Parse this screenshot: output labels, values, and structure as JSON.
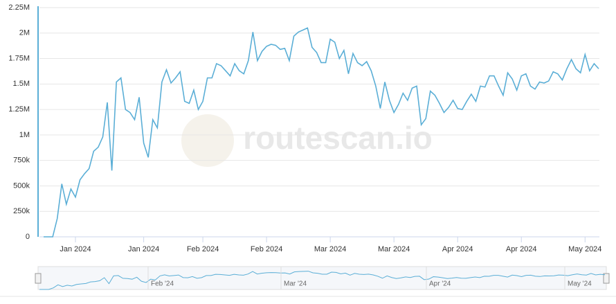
{
  "chart_data": {
    "type": "line",
    "watermark": "routescan.io",
    "categories": [
      null,
      null,
      null,
      null,
      null,
      null,
      null,
      "Jan 2024",
      null,
      null,
      null,
      null,
      null,
      null,
      null,
      null,
      null,
      null,
      null,
      null,
      null,
      null,
      "Jan 2024",
      null,
      null,
      null,
      null,
      null,
      null,
      null,
      null,
      null,
      null,
      null,
      null,
      "Feb 2024",
      null,
      null,
      null,
      null,
      null,
      null,
      null,
      null,
      null,
      null,
      null,
      null,
      null,
      "Feb 2024",
      null,
      null,
      null,
      null,
      null,
      null,
      null,
      null,
      null,
      null,
      null,
      null,
      null,
      "Mar 2024",
      null,
      null,
      null,
      null,
      null,
      null,
      null,
      null,
      null,
      null,
      null,
      null,
      null,
      "Mar 2024",
      null,
      null,
      null,
      null,
      null,
      null,
      null,
      null,
      null,
      null,
      null,
      null,
      null,
      "Apr 2024",
      null,
      null,
      null,
      null,
      null,
      null,
      null,
      null,
      null,
      null,
      null,
      null,
      null,
      "Apr 2024",
      null,
      null,
      null,
      null,
      null,
      null,
      null,
      null,
      null,
      null,
      null,
      null,
      null,
      "May 2024",
      null,
      null,
      null
    ],
    "series": [
      {
        "color": "#5aaed6",
        "values": [
          0,
          0,
          0,
          180000,
          520000,
          320000,
          470000,
          390000,
          560000,
          620000,
          670000,
          840000,
          880000,
          980000,
          1320000,
          650000,
          1520000,
          1560000,
          1250000,
          1220000,
          1150000,
          1370000,
          920000,
          780000,
          1150000,
          1070000,
          1520000,
          1640000,
          1510000,
          1560000,
          1620000,
          1330000,
          1310000,
          1440000,
          1250000,
          1330000,
          1560000,
          1560000,
          1700000,
          1680000,
          1630000,
          1580000,
          1700000,
          1630000,
          1600000,
          1730000,
          2010000,
          1730000,
          1820000,
          1870000,
          1890000,
          1880000,
          1840000,
          1850000,
          1730000,
          1970000,
          2010000,
          2030000,
          2050000,
          1860000,
          1810000,
          1710000,
          1710000,
          1940000,
          1910000,
          1750000,
          1830000,
          1600000,
          1800000,
          1710000,
          1680000,
          1720000,
          1630000,
          1480000,
          1260000,
          1520000,
          1340000,
          1220000,
          1300000,
          1410000,
          1340000,
          1460000,
          1480000,
          1100000,
          1160000,
          1430000,
          1390000,
          1310000,
          1220000,
          1270000,
          1340000,
          1260000,
          1250000,
          1330000,
          1400000,
          1330000,
          1480000,
          1470000,
          1580000,
          1580000,
          1480000,
          1390000,
          1610000,
          1550000,
          1440000,
          1580000,
          1600000,
          1480000,
          1450000,
          1520000,
          1510000,
          1530000,
          1620000,
          1600000,
          1540000,
          1650000,
          1740000,
          1650000,
          1610000,
          1790000,
          1630000,
          1700000,
          1650000
        ]
      }
    ],
    "ylim": [
      0,
      2250000
    ],
    "yticks": [
      0,
      {
        "value": 250000,
        "label": "250k"
      },
      {
        "value": 500000,
        "label": "500k"
      },
      {
        "value": 750000,
        "label": "750k"
      },
      {
        "value": 1000000,
        "label": "1M"
      },
      {
        "value": 1250000,
        "label": "1.25M"
      },
      {
        "value": 1500000,
        "label": "1.5M"
      },
      {
        "value": 1750000,
        "label": "1.75M"
      },
      {
        "value": 2000000,
        "label": "2M"
      },
      {
        "value": 2250000,
        "label": "2.25M"
      }
    ],
    "grid": true,
    "navigator_labels": [
      "Feb '24",
      "Mar '24",
      "Apr '24",
      "May '24"
    ]
  }
}
